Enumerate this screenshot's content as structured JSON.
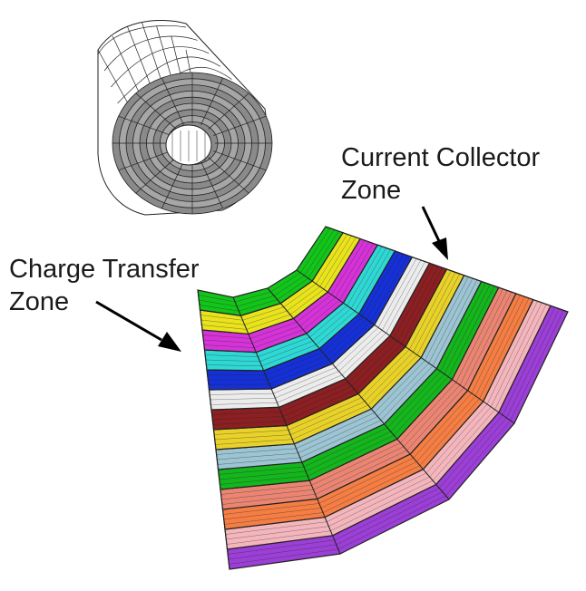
{
  "labels": {
    "current_collector_line1": "Current Collector",
    "current_collector_line2": "Zone",
    "charge_transfer_line1": "Charge Transfer",
    "charge_transfer_line2": "Zone"
  },
  "colors": {
    "band_colors_outer_to_inner": [
      "#9b3fd6",
      "#f4b6bd",
      "#f47e44",
      "#ea8573",
      "#15b51d",
      "#9cc4d2",
      "#e8d22a",
      "#8b1f22",
      "#ececec",
      "#1530d6",
      "#2fd8d4",
      "#d533d8",
      "#e9e31e",
      "#13c41a"
    ],
    "roll_outer_face": "#ffffff",
    "roll_end_face": "#8a8a8a",
    "mesh_line": "#222222",
    "arrow": "#000000"
  }
}
